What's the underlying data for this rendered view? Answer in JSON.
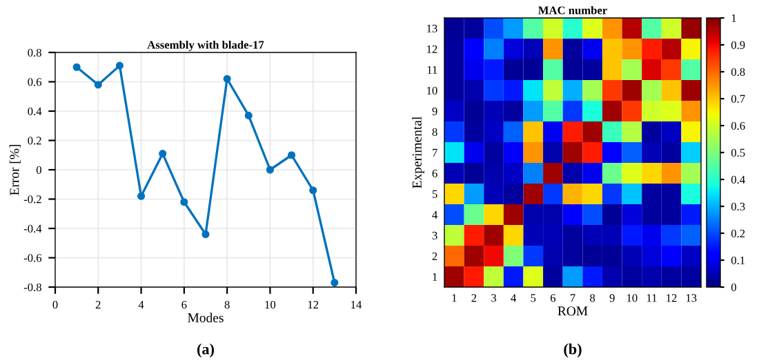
{
  "chart_data": [
    {
      "type": "line",
      "title": "Assembly with blade-17",
      "xlabel": "Modes",
      "ylabel": "Error [%]",
      "annotations": [
        "(a)"
      ],
      "x": [
        1,
        2,
        3,
        4,
        5,
        6,
        7,
        8,
        9,
        10,
        11,
        12,
        13
      ],
      "series": [
        {
          "color": "#0072bd",
          "values": [
            0.7,
            0.58,
            0.71,
            -0.18,
            0.11,
            -0.22,
            -0.44,
            0.62,
            0.37,
            0.0,
            0.1,
            -0.14,
            -0.77
          ]
        }
      ],
      "xlim": [
        0,
        14
      ],
      "xticks": [
        0,
        2,
        4,
        6,
        8,
        10,
        12,
        14
      ],
      "ylim": [
        -0.8,
        0.8
      ],
      "yticks": [
        -0.8,
        -0.6,
        -0.4,
        -0.2,
        0,
        0.2,
        0.4,
        0.6,
        0.8
      ],
      "grid": true,
      "marker": "circle",
      "line_style": "solid"
    },
    {
      "type": "heatmap",
      "title": "MAC number",
      "xlabel": "ROM",
      "ylabel": "Experimental",
      "annotations": [
        "(b)"
      ],
      "categories": [
        "1",
        "2",
        "3",
        "4",
        "5",
        "6",
        "7",
        "8",
        "9",
        "10",
        "11",
        "12",
        "13"
      ],
      "y_categories": [
        "13",
        "12",
        "11",
        "10",
        "9",
        "8",
        "7",
        "6",
        "5",
        "4",
        "3",
        "2",
        "1"
      ],
      "cells": [
        [
          0.02,
          0.03,
          0.2,
          0.28,
          0.45,
          0.6,
          0.4,
          0.62,
          0.75,
          0.95,
          0.45,
          0.6,
          0.98
        ],
        [
          0.03,
          0.12,
          0.25,
          0.08,
          0.05,
          0.75,
          0.03,
          0.1,
          0.7,
          0.75,
          0.88,
          0.95,
          0.65
        ],
        [
          0.03,
          0.1,
          0.15,
          0.02,
          0.02,
          0.45,
          0.02,
          0.03,
          0.7,
          0.55,
          0.92,
          0.85,
          0.45
        ],
        [
          0.03,
          0.04,
          0.18,
          0.15,
          0.35,
          0.58,
          0.3,
          0.55,
          0.85,
          0.97,
          0.55,
          0.7,
          0.97
        ],
        [
          0.06,
          0.02,
          0.05,
          0.03,
          0.28,
          0.45,
          0.18,
          0.38,
          0.97,
          0.85,
          0.6,
          0.62,
          0.75
        ],
        [
          0.18,
          0.03,
          0.06,
          0.22,
          0.7,
          0.1,
          0.88,
          0.97,
          0.42,
          0.57,
          0.03,
          0.06,
          0.65
        ],
        [
          0.35,
          0.1,
          0.03,
          0.12,
          0.75,
          0.04,
          0.97,
          0.88,
          0.12,
          0.22,
          0.05,
          0.03,
          0.33
        ],
        [
          0.05,
          0.02,
          0.04,
          0.06,
          0.25,
          0.97,
          0.04,
          0.1,
          0.48,
          0.62,
          0.68,
          0.75,
          0.55
        ],
        [
          0.68,
          0.28,
          0.05,
          0.03,
          0.97,
          0.18,
          0.72,
          0.68,
          0.18,
          0.32,
          0.03,
          0.03,
          0.38
        ],
        [
          0.2,
          0.48,
          0.68,
          0.97,
          0.04,
          0.04,
          0.12,
          0.2,
          0.02,
          0.08,
          0.03,
          0.03,
          0.15
        ],
        [
          0.58,
          0.88,
          0.97,
          0.68,
          0.05,
          0.05,
          0.03,
          0.05,
          0.05,
          0.15,
          0.1,
          0.18,
          0.22
        ],
        [
          0.8,
          0.97,
          0.9,
          0.5,
          0.18,
          0.04,
          0.03,
          0.02,
          0.02,
          0.05,
          0.08,
          0.12,
          0.06
        ],
        [
          0.97,
          0.88,
          0.58,
          0.15,
          0.62,
          0.03,
          0.28,
          0.15,
          0.04,
          0.03,
          0.04,
          0.03,
          0.03
        ]
      ],
      "clim": [
        0,
        1
      ],
      "cticks": [
        0,
        0.1,
        0.2,
        0.3,
        0.4,
        0.5,
        0.6,
        0.7,
        0.8,
        0.9,
        1
      ]
    }
  ]
}
